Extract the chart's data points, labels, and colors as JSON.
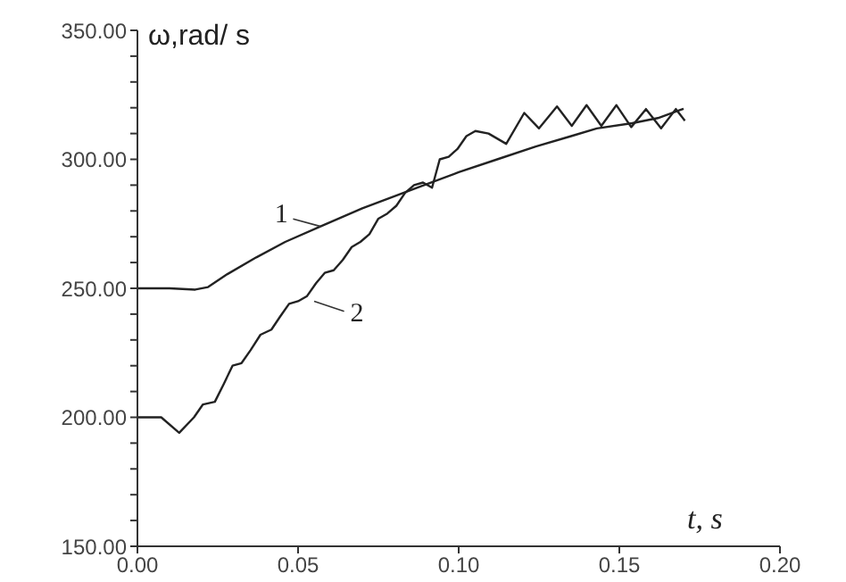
{
  "chart_data": {
    "type": "line",
    "xlabel": "t, s",
    "ylabel": "ω,rad/ s",
    "xlim": [
      0,
      0.2
    ],
    "ylim": [
      150,
      350
    ],
    "xticks": [
      {
        "value": 0,
        "label": "0.00"
      },
      {
        "value": 0.05,
        "label": "0.05"
      },
      {
        "value": 0.1,
        "label": "0.10"
      },
      {
        "value": 0.15,
        "label": "0.15"
      },
      {
        "value": 0.2,
        "label": "0.20"
      }
    ],
    "yticks": [
      {
        "value": 150,
        "label": "150.00"
      },
      {
        "value": 160,
        "label": null
      },
      {
        "value": 170,
        "label": null
      },
      {
        "value": 180,
        "label": null
      },
      {
        "value": 190,
        "label": null
      },
      {
        "value": 200,
        "label": "200.00"
      },
      {
        "value": 210,
        "label": null
      },
      {
        "value": 220,
        "label": null
      },
      {
        "value": 230,
        "label": null
      },
      {
        "value": 240,
        "label": null
      },
      {
        "value": 250,
        "label": "250.00"
      },
      {
        "value": 260,
        "label": null
      },
      {
        "value": 270,
        "label": null
      },
      {
        "value": 280,
        "label": null
      },
      {
        "value": 290,
        "label": null
      },
      {
        "value": 300,
        "label": "300.00"
      },
      {
        "value": 310,
        "label": null
      },
      {
        "value": 320,
        "label": null
      },
      {
        "value": 330,
        "label": null
      },
      {
        "value": 340,
        "label": null
      },
      {
        "value": 350,
        "label": "350.00"
      }
    ],
    "grid": false,
    "legend": false,
    "series": [
      {
        "color": "#222222",
        "x": [
          0,
          0.01,
          0.018,
          0.022,
          0.028,
          0.037,
          0.046,
          0.057,
          0.07,
          0.087,
          0.1,
          0.112,
          0.124,
          0.135,
          0.143,
          0.154,
          0.162,
          0.17
        ],
        "values": [
          250,
          250,
          249.5,
          250.5,
          255.5,
          262,
          268,
          274,
          281,
          289,
          295,
          300,
          305,
          309,
          312,
          314,
          316,
          319.6
        ]
      },
      {
        "color": "#222222",
        "x": [
          0,
          0.0074,
          0.013,
          0.0176,
          0.0204,
          0.0241,
          0.0269,
          0.0296,
          0.0324,
          0.0352,
          0.0383,
          0.0417,
          0.0444,
          0.0472,
          0.05,
          0.0528,
          0.0556,
          0.0583,
          0.0611,
          0.0639,
          0.0667,
          0.0694,
          0.0722,
          0.075,
          0.0778,
          0.0806,
          0.0833,
          0.0861,
          0.0889,
          0.0917,
          0.0941,
          0.0969,
          0.0996,
          0.1024,
          0.1052,
          0.1093,
          0.1148,
          0.1204,
          0.125,
          0.1306,
          0.1352,
          0.1398,
          0.1444,
          0.1491,
          0.1537,
          0.1583,
          0.163,
          0.1676,
          0.1704
        ],
        "values": [
          200,
          200,
          194,
          200,
          205,
          206,
          213,
          220,
          221,
          226,
          232,
          234,
          239,
          244,
          245,
          247,
          252,
          256,
          257,
          261,
          266,
          268,
          271,
          277,
          279,
          282,
          287,
          290,
          291,
          289,
          300,
          301,
          304,
          309,
          311,
          310,
          306,
          318,
          312,
          320.5,
          313,
          321,
          313,
          321,
          312.5,
          319.5,
          312,
          319.5,
          315
        ]
      }
    ],
    "annotations": [
      {
        "text": "1",
        "x": 0.057,
        "y": 274
      },
      {
        "text": "2",
        "x": 0.055,
        "y": 245
      }
    ]
  }
}
